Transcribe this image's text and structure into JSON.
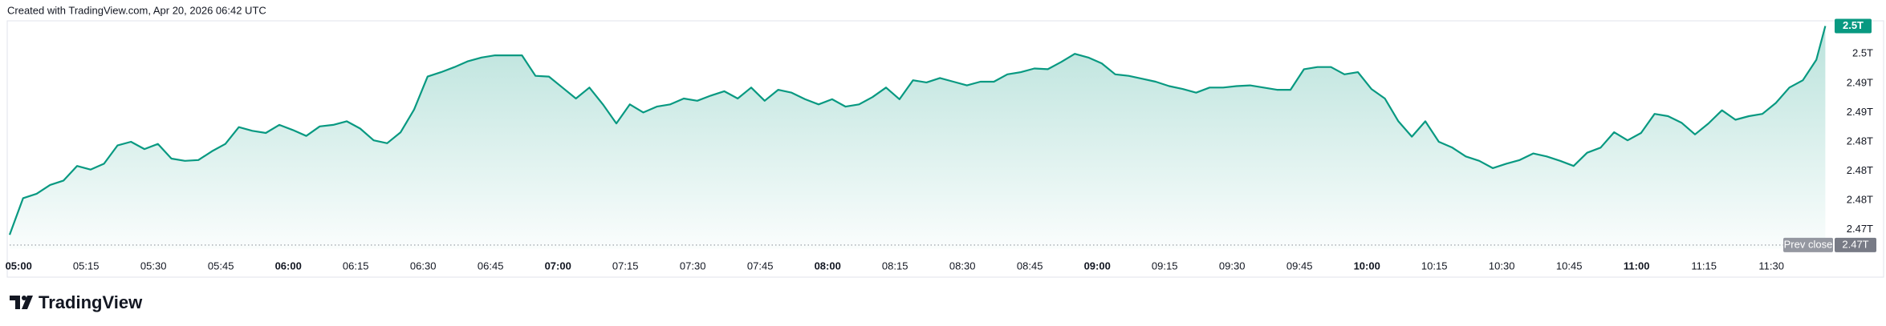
{
  "header": {
    "credit": "Created with TradingView.com, Apr 20, 2026 06:42 UTC"
  },
  "brand": "TradingView",
  "chart_data": {
    "type": "area",
    "color": "#089981",
    "grid": false,
    "x": [
      "04:58",
      "05:01",
      "05:04",
      "05:07",
      "05:10",
      "05:13",
      "05:16",
      "05:19",
      "05:22",
      "05:25",
      "05:28",
      "05:31",
      "05:34",
      "05:37",
      "05:40",
      "05:43",
      "05:46",
      "05:49",
      "05:52",
      "05:55",
      "05:58",
      "06:01",
      "06:04",
      "06:07",
      "06:10",
      "06:13",
      "06:16",
      "06:19",
      "06:22",
      "06:25",
      "06:28",
      "06:31",
      "06:34",
      "06:37",
      "06:40",
      "06:43",
      "06:46",
      "06:49",
      "06:52",
      "06:55",
      "06:58",
      "07:01",
      "07:04",
      "07:07",
      "07:10",
      "07:13",
      "07:16",
      "07:19",
      "07:22",
      "07:25",
      "07:28",
      "07:31",
      "07:34",
      "07:37",
      "07:40",
      "07:43",
      "07:46",
      "07:49",
      "07:52",
      "07:55",
      "07:58",
      "08:01",
      "08:04",
      "08:07",
      "08:10",
      "08:13",
      "08:16",
      "08:19",
      "08:22",
      "08:25",
      "08:28",
      "08:31",
      "08:34",
      "08:37",
      "08:40",
      "08:43",
      "08:46",
      "08:49",
      "08:52",
      "08:55",
      "08:58",
      "09:01",
      "09:04",
      "09:07",
      "09:10",
      "09:13",
      "09:16",
      "09:19",
      "09:22",
      "09:25",
      "09:28",
      "09:31",
      "09:34",
      "09:37",
      "09:40",
      "09:43",
      "09:46",
      "09:49",
      "09:52",
      "09:55",
      "09:58",
      "10:01",
      "10:04",
      "10:07",
      "10:10",
      "10:13",
      "10:16",
      "10:19",
      "10:22",
      "10:25",
      "10:28",
      "10:31",
      "10:34",
      "10:37",
      "10:40",
      "10:43",
      "10:46",
      "10:49",
      "10:52",
      "10:55",
      "10:58",
      "11:01",
      "11:04",
      "11:07",
      "11:10",
      "11:13",
      "11:16",
      "11:19",
      "11:22",
      "11:25",
      "11:28",
      "11:31",
      "11:34",
      "11:37",
      "11:40",
      "11:42"
    ],
    "values": [
      2.4713,
      2.4763,
      2.4769,
      2.4781,
      2.4787,
      2.4807,
      2.4802,
      2.481,
      2.4835,
      2.484,
      2.483,
      2.4837,
      2.4817,
      2.4814,
      2.4815,
      2.4827,
      2.4837,
      2.486,
      2.4855,
      2.4852,
      2.4863,
      2.4856,
      2.4848,
      2.4861,
      2.4863,
      2.4868,
      2.4858,
      2.4842,
      2.4838,
      2.4853,
      2.4884,
      2.4929,
      2.4935,
      2.4942,
      2.495,
      2.4955,
      2.4958,
      2.4958,
      2.4958,
      2.493,
      2.4929,
      2.4914,
      2.4899,
      2.4914,
      2.4891,
      2.4865,
      2.4891,
      2.488,
      2.4888,
      2.4891,
      2.4899,
      2.4896,
      2.4903,
      2.4909,
      2.4899,
      2.4914,
      2.4896,
      2.4911,
      2.4907,
      2.4898,
      2.4891,
      2.4898,
      2.4888,
      2.4891,
      2.4901,
      2.4914,
      2.4898,
      2.4924,
      2.4921,
      2.4927,
      2.4922,
      2.4917,
      2.4922,
      2.4922,
      2.4932,
      2.4935,
      2.494,
      2.4939,
      2.4949,
      2.496,
      2.4955,
      2.4947,
      2.4932,
      2.493,
      2.4926,
      2.4922,
      2.4916,
      2.4912,
      2.4907,
      2.4914,
      2.4914,
      2.4916,
      2.4917,
      2.4914,
      2.4911,
      2.4911,
      2.4939,
      2.4942,
      2.4942,
      2.4932,
      2.4935,
      2.4912,
      2.4899,
      2.4868,
      2.4847,
      2.4868,
      2.484,
      2.4832,
      2.482,
      2.4814,
      2.4804,
      2.481,
      2.4815,
      2.4824,
      2.482,
      2.4814,
      2.4807,
      2.4825,
      2.4832,
      2.4853,
      2.4842,
      2.4852,
      2.4878,
      2.4875,
      2.4866,
      2.485,
      2.4865,
      2.4883,
      2.487,
      2.4875,
      2.4878,
      2.4893,
      2.4914,
      2.4924,
      2.4952,
      2.4998
    ],
    "last_value_label": "2.5T",
    "prev_close": {
      "label": "Prev close",
      "value": 2.4699,
      "value_label": "2.47T"
    },
    "xlim": [
      "04:58",
      "11:43"
    ],
    "xticks": [
      "05:00",
      "05:15",
      "05:30",
      "05:45",
      "06:00",
      "06:15",
      "06:30",
      "06:45",
      "07:00",
      "07:15",
      "07:30",
      "07:45",
      "08:00",
      "08:15",
      "08:30",
      "08:45",
      "09:00",
      "09:15",
      "09:30",
      "09:45",
      "10:00",
      "10:15",
      "10:30",
      "10:45",
      "11:00",
      "11:15",
      "11:30"
    ],
    "ylim": [
      2.4694,
      2.5004
    ],
    "yticks": [
      {
        "value": 2.496,
        "label": "2.5T"
      },
      {
        "value": 2.492,
        "label": "2.49T"
      },
      {
        "value": 2.488,
        "label": "2.49T"
      },
      {
        "value": 2.484,
        "label": "2.48T"
      },
      {
        "value": 2.48,
        "label": "2.48T"
      },
      {
        "value": 2.476,
        "label": "2.48T"
      },
      {
        "value": 2.472,
        "label": "2.47T"
      }
    ]
  }
}
